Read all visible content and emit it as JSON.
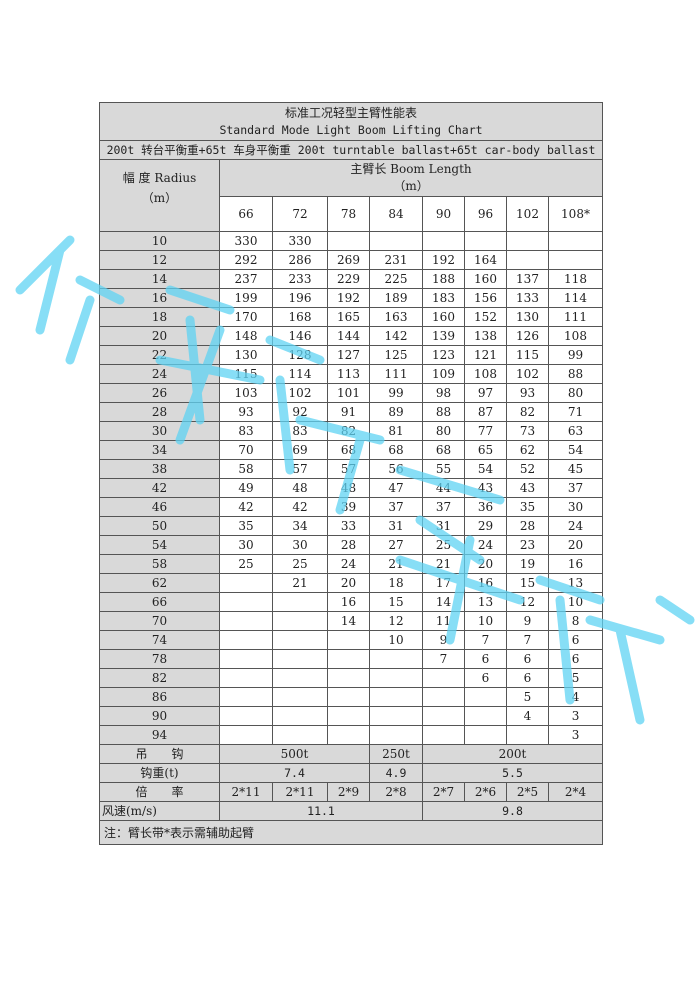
{
  "title_cn": "标准工况轻型主臂性能表",
  "title_en": "Standard Mode Light Boom Lifting Chart",
  "ballast": "200t 转台平衡重+65t 车身平衡重 200t turntable ballast+65t car-body ballast",
  "radius_header": "幅 度 Radius",
  "radius_unit": "（m）",
  "boom_header": "主臂长 Boom Length",
  "boom_unit": "（m）",
  "boom_lengths": [
    "66",
    "72",
    "78",
    "84",
    "90",
    "96",
    "102",
    "108*"
  ],
  "rows": [
    {
      "r": "10",
      "v": [
        "330",
        "330",
        "",
        "",
        "",
        "",
        "",
        ""
      ]
    },
    {
      "r": "12",
      "v": [
        "292",
        "286",
        "269",
        "231",
        "192",
        "164",
        "",
        ""
      ]
    },
    {
      "r": "14",
      "v": [
        "237",
        "233",
        "229",
        "225",
        "188",
        "160",
        "137",
        "118"
      ]
    },
    {
      "r": "16",
      "v": [
        "199",
        "196",
        "192",
        "189",
        "183",
        "156",
        "133",
        "114"
      ]
    },
    {
      "r": "18",
      "v": [
        "170",
        "168",
        "165",
        "163",
        "160",
        "152",
        "130",
        "111"
      ]
    },
    {
      "r": "20",
      "v": [
        "148",
        "146",
        "144",
        "142",
        "139",
        "138",
        "126",
        "108"
      ]
    },
    {
      "r": "22",
      "v": [
        "130",
        "128",
        "127",
        "125",
        "123",
        "121",
        "115",
        "99"
      ]
    },
    {
      "r": "24",
      "v": [
        "115",
        "114",
        "113",
        "111",
        "109",
        "108",
        "102",
        "88"
      ]
    },
    {
      "r": "26",
      "v": [
        "103",
        "102",
        "101",
        "99",
        "98",
        "97",
        "93",
        "80"
      ]
    },
    {
      "r": "28",
      "v": [
        "93",
        "92",
        "91",
        "89",
        "88",
        "87",
        "82",
        "71"
      ]
    },
    {
      "r": "30",
      "v": [
        "83",
        "83",
        "82",
        "81",
        "80",
        "77",
        "73",
        "63"
      ]
    },
    {
      "r": "34",
      "v": [
        "70",
        "69",
        "68",
        "68",
        "68",
        "65",
        "62",
        "54"
      ]
    },
    {
      "r": "38",
      "v": [
        "58",
        "57",
        "57",
        "56",
        "55",
        "54",
        "52",
        "45"
      ]
    },
    {
      "r": "42",
      "v": [
        "49",
        "48",
        "48",
        "47",
        "44",
        "43",
        "43",
        "37"
      ]
    },
    {
      "r": "46",
      "v": [
        "42",
        "42",
        "39",
        "37",
        "37",
        "36",
        "35",
        "30"
      ]
    },
    {
      "r": "50",
      "v": [
        "35",
        "34",
        "33",
        "31",
        "31",
        "29",
        "28",
        "24"
      ]
    },
    {
      "r": "54",
      "v": [
        "30",
        "30",
        "28",
        "27",
        "25",
        "24",
        "23",
        "20"
      ]
    },
    {
      "r": "58",
      "v": [
        "25",
        "25",
        "24",
        "21",
        "21",
        "20",
        "19",
        "16"
      ]
    },
    {
      "r": "62",
      "v": [
        "",
        "21",
        "20",
        "18",
        "17",
        "16",
        "15",
        "13"
      ]
    },
    {
      "r": "66",
      "v": [
        "",
        "",
        "16",
        "15",
        "14",
        "13",
        "12",
        "10"
      ]
    },
    {
      "r": "70",
      "v": [
        "",
        "",
        "14",
        "12",
        "11",
        "10",
        "9",
        "8"
      ]
    },
    {
      "r": "74",
      "v": [
        "",
        "",
        "",
        "10",
        "9",
        "7",
        "7",
        "6"
      ]
    },
    {
      "r": "78",
      "v": [
        "",
        "",
        "",
        "",
        "7",
        "6",
        "6",
        "6"
      ]
    },
    {
      "r": "82",
      "v": [
        "",
        "",
        "",
        "",
        "",
        "6",
        "6",
        "5"
      ]
    },
    {
      "r": "86",
      "v": [
        "",
        "",
        "",
        "",
        "",
        "",
        "5",
        "4"
      ]
    },
    {
      "r": "90",
      "v": [
        "",
        "",
        "",
        "",
        "",
        "",
        "4",
        "3"
      ]
    },
    {
      "r": "94",
      "v": [
        "",
        "",
        "",
        "",
        "",
        "",
        "",
        "3"
      ]
    }
  ],
  "hook_label": "吊　　钩",
  "hooks": [
    "500t",
    "250t",
    "200t"
  ],
  "hook_weight_label": "钩重(t)",
  "hook_weights": [
    "7.4",
    "4.9",
    "5.5"
  ],
  "reeving_label": "倍　　率",
  "reevings": [
    "2*11",
    "2*11",
    "2*9",
    "2*8",
    "2*7",
    "2*6",
    "2*5",
    "2*4"
  ],
  "wind_label": "风速(m/s)",
  "wind_speeds": [
    "11.1",
    "9.8"
  ],
  "note": "注：臂长带*表示需辅助起臂",
  "watermark": "民部门家用",
  "watermark_color": "#5fd3f3"
}
